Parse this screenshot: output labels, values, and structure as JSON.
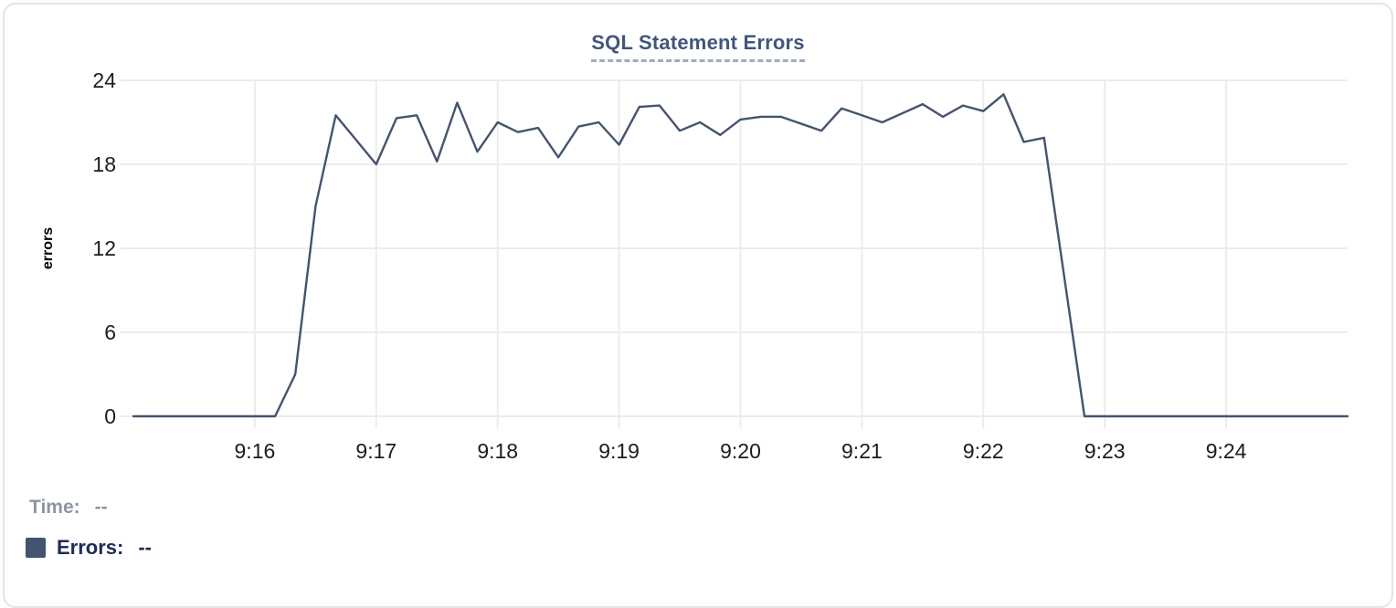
{
  "chart_data": {
    "type": "line",
    "title": "SQL Statement Errors",
    "xlabel": "",
    "ylabel": "errors",
    "ylim": [
      0,
      24
    ],
    "yticks": [
      0,
      6,
      12,
      18,
      24
    ],
    "xticks": [
      "9:16",
      "9:17",
      "9:18",
      "9:19",
      "9:20",
      "9:21",
      "9:22",
      "9:23",
      "9:24"
    ],
    "x_domain": [
      "9:15:00",
      "9:25:00"
    ],
    "grid": true,
    "legend_position": "bottom-left",
    "series": [
      {
        "name": "Errors",
        "color": "#44546F",
        "points": [
          [
            "9:15:00",
            0
          ],
          [
            "9:16:10",
            0
          ],
          [
            "9:16:20",
            3
          ],
          [
            "9:16:30",
            15
          ],
          [
            "9:16:40",
            21.5
          ],
          [
            "9:17:00",
            18
          ],
          [
            "9:17:10",
            21.3
          ],
          [
            "9:17:20",
            21.5
          ],
          [
            "9:17:30",
            18.2
          ],
          [
            "9:17:40",
            22.4
          ],
          [
            "9:17:50",
            18.9
          ],
          [
            "9:18:00",
            21
          ],
          [
            "9:18:10",
            20.3
          ],
          [
            "9:18:20",
            20.6
          ],
          [
            "9:18:30",
            18.5
          ],
          [
            "9:18:40",
            20.7
          ],
          [
            "9:18:50",
            21
          ],
          [
            "9:19:00",
            19.4
          ],
          [
            "9:19:10",
            22.1
          ],
          [
            "9:19:20",
            22.2
          ],
          [
            "9:19:30",
            20.4
          ],
          [
            "9:19:40",
            21
          ],
          [
            "9:19:50",
            20.1
          ],
          [
            "9:20:00",
            21.2
          ],
          [
            "9:20:10",
            21.4
          ],
          [
            "9:20:20",
            21.4
          ],
          [
            "9:20:40",
            20.4
          ],
          [
            "9:20:50",
            22
          ],
          [
            "9:21:00",
            21.5
          ],
          [
            "9:21:10",
            21
          ],
          [
            "9:21:30",
            22.3
          ],
          [
            "9:21:40",
            21.4
          ],
          [
            "9:21:50",
            22.2
          ],
          [
            "9:22:00",
            21.8
          ],
          [
            "9:22:10",
            23
          ],
          [
            "9:22:20",
            19.6
          ],
          [
            "9:22:30",
            19.9
          ],
          [
            "9:22:50",
            0
          ],
          [
            "9:25:00",
            0
          ]
        ]
      }
    ]
  },
  "tooltip": {
    "time_label": "Time:",
    "time_value": "--",
    "errors_label": "Errors:",
    "errors_value": "--"
  },
  "colors": {
    "accent": "#44546F",
    "grid": "#ECECEC",
    "title": "#42567A",
    "title_underline": "#9DABC3",
    "axis_text": "#1C1C1C",
    "legend_muted": "#8C95A3",
    "legend_dark": "#1D2C54",
    "border": "#E4E4E6"
  }
}
